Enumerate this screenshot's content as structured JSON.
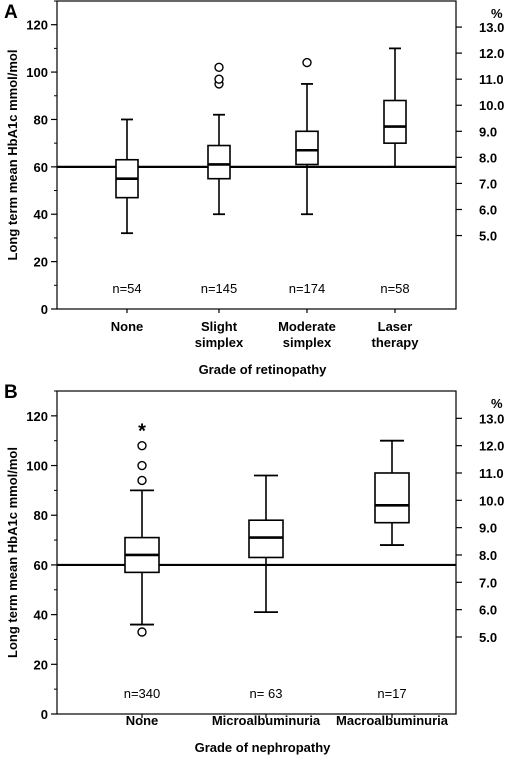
{
  "chart_data": [
    {
      "panel": "A",
      "type": "box",
      "ylabel": "Long term mean HbA1c mmol/mol",
      "xlabel": "Grade of retinopathy",
      "ylim": [
        0,
        130
      ],
      "yticks": [
        0,
        20,
        40,
        60,
        80,
        100,
        120
      ],
      "right_axis": {
        "unit": "%",
        "ticks": [
          "13.0",
          "12.0",
          "11.0",
          "10.0",
          "9.0",
          "8.0",
          "7.0",
          "6.0",
          "5.0"
        ],
        "tick_values_mmol": [
          119,
          108,
          97,
          86,
          75,
          64,
          53,
          42,
          31
        ]
      },
      "reference_line": 60,
      "categories": [
        {
          "label": [
            "None"
          ],
          "n": "n=54",
          "whisker_low": 32,
          "q1": 47,
          "median": 55,
          "q3": 63,
          "whisker_high": 80,
          "outliers": [],
          "extremes": []
        },
        {
          "label": [
            "Slight",
            "simplex"
          ],
          "n": "n=145",
          "whisker_low": 40,
          "q1": 55,
          "median": 61,
          "q3": 69,
          "whisker_high": 82,
          "outliers": [
            95,
            97,
            102
          ],
          "extremes": []
        },
        {
          "label": [
            "Moderate",
            "simplex"
          ],
          "n": "n=174",
          "whisker_low": 40,
          "q1": 61,
          "median": 67,
          "q3": 75,
          "whisker_high": 95,
          "outliers": [
            104
          ],
          "extremes": []
        },
        {
          "label": [
            "Laser",
            "therapy"
          ],
          "n": "n=58",
          "whisker_low": 60,
          "q1": 70,
          "median": 77,
          "q3": 88,
          "whisker_high": 110,
          "outliers": [],
          "extremes": []
        }
      ]
    },
    {
      "panel": "B",
      "type": "box",
      "ylabel": "Long term mean HbA1c mmol/mol",
      "xlabel": "Grade of nephropathy",
      "ylim": [
        0,
        130
      ],
      "yticks": [
        0,
        20,
        40,
        60,
        80,
        100,
        120
      ],
      "right_axis": {
        "unit": "%",
        "ticks": [
          "13.0",
          "12.0",
          "11.0",
          "10.0",
          "9.0",
          "8.0",
          "7.0",
          "6.0",
          "5.0"
        ],
        "tick_values_mmol": [
          119,
          108,
          97,
          86,
          75,
          64,
          53,
          42,
          31
        ]
      },
      "reference_line": 60,
      "categories": [
        {
          "label": [
            "None"
          ],
          "n": "n=340",
          "whisker_low": 36,
          "q1": 57,
          "median": 64,
          "q3": 71,
          "whisker_high": 90,
          "outliers": [
            33,
            94,
            100,
            108
          ],
          "extremes": [
            115
          ]
        },
        {
          "label": [
            "Microalbuminuria"
          ],
          "n": "n= 63",
          "whisker_low": 41,
          "q1": 63,
          "median": 71,
          "q3": 78,
          "whisker_high": 96,
          "outliers": [],
          "extremes": []
        },
        {
          "label": [
            "Macroalbuminuria"
          ],
          "n": "n=17",
          "whisker_low": 68,
          "q1": 77,
          "median": 84,
          "q3": 97,
          "whisker_high": 110,
          "outliers": [],
          "extremes": []
        }
      ]
    }
  ]
}
